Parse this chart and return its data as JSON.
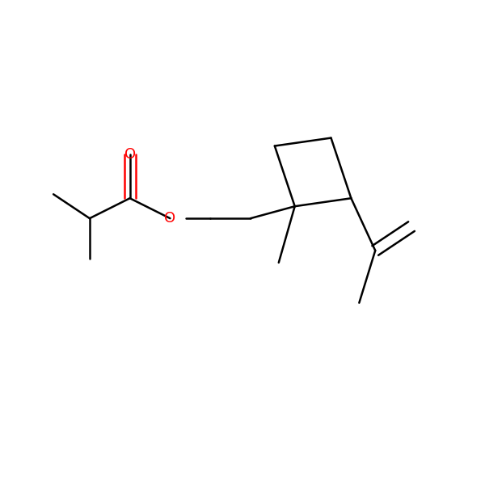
{
  "background_color": "#ffffff",
  "bond_color": "#000000",
  "oxygen_color": "#ff0000",
  "line_width": 1.8,
  "font_size": 13,
  "figsize": [
    6.0,
    6.0
  ],
  "dpi": 100
}
